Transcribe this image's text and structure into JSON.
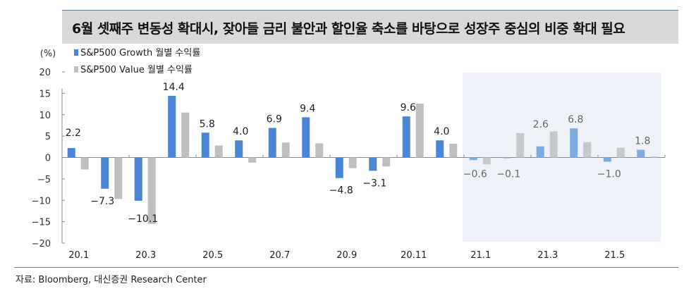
{
  "title": "6월 셋째주 변동성 확대시, 잦아들 금리 불안과 할인율 축소를 바탕으로 성장주 중심의 비중 확대 필요",
  "source": "자료: Bloomberg, 대신증권 Research Center",
  "chart_data": {
    "type": "bar",
    "title": "",
    "ylabel": "(%)",
    "xlabel": "",
    "ylim": [
      -20,
      20
    ],
    "yticks": [
      20,
      15,
      10,
      5,
      0,
      -5,
      -10,
      -15,
      -20
    ],
    "categories": [
      "20.1",
      "20.2",
      "20.3",
      "20.4",
      "20.5",
      "20.6",
      "20.7",
      "20.8",
      "20.9",
      "20.10",
      "20.11",
      "20.12",
      "21.1",
      "21.2",
      "21.3",
      "21.4",
      "21.5",
      "21.6"
    ],
    "xtick_labels": [
      "20.1",
      "20.3",
      "20.5",
      "20.7",
      "20.9",
      "20.11",
      "21.1",
      "21.3",
      "21.5"
    ],
    "legend_position": "top-left",
    "highlight_range": [
      "21.1",
      "21.6"
    ],
    "series": [
      {
        "name": "S&P500 Growth 월별 수익률",
        "color": "#4a86d8",
        "highlight_color": "#7eaae2",
        "values": [
          2.2,
          -7.3,
          -10.1,
          14.4,
          5.8,
          4.0,
          6.9,
          9.4,
          -4.8,
          -3.1,
          9.6,
          4.0,
          -0.6,
          -0.1,
          2.6,
          6.8,
          -1.0,
          1.8
        ],
        "data_labels": [
          "2.2",
          "-7.3",
          "-10.1",
          "14.4",
          "5.8",
          "4.0",
          "6.9",
          "9.4",
          "-4.8",
          "-3.1",
          "9.6",
          "4.0",
          "-0.6",
          "-0.1",
          "2.6",
          "6.8",
          "-1.0",
          "1.8"
        ]
      },
      {
        "name": "S&P500 Value 월별 수익률",
        "color": "#bfbfbf",
        "highlight_color": "#c6c8cc",
        "values": [
          -2.8,
          -9.7,
          -15.5,
          10.5,
          2.8,
          -1.2,
          3.5,
          3.3,
          -2.5,
          -2.1,
          12.6,
          3.2,
          -1.6,
          5.7,
          6.1,
          3.6,
          2.3,
          0.2
        ]
      }
    ]
  }
}
